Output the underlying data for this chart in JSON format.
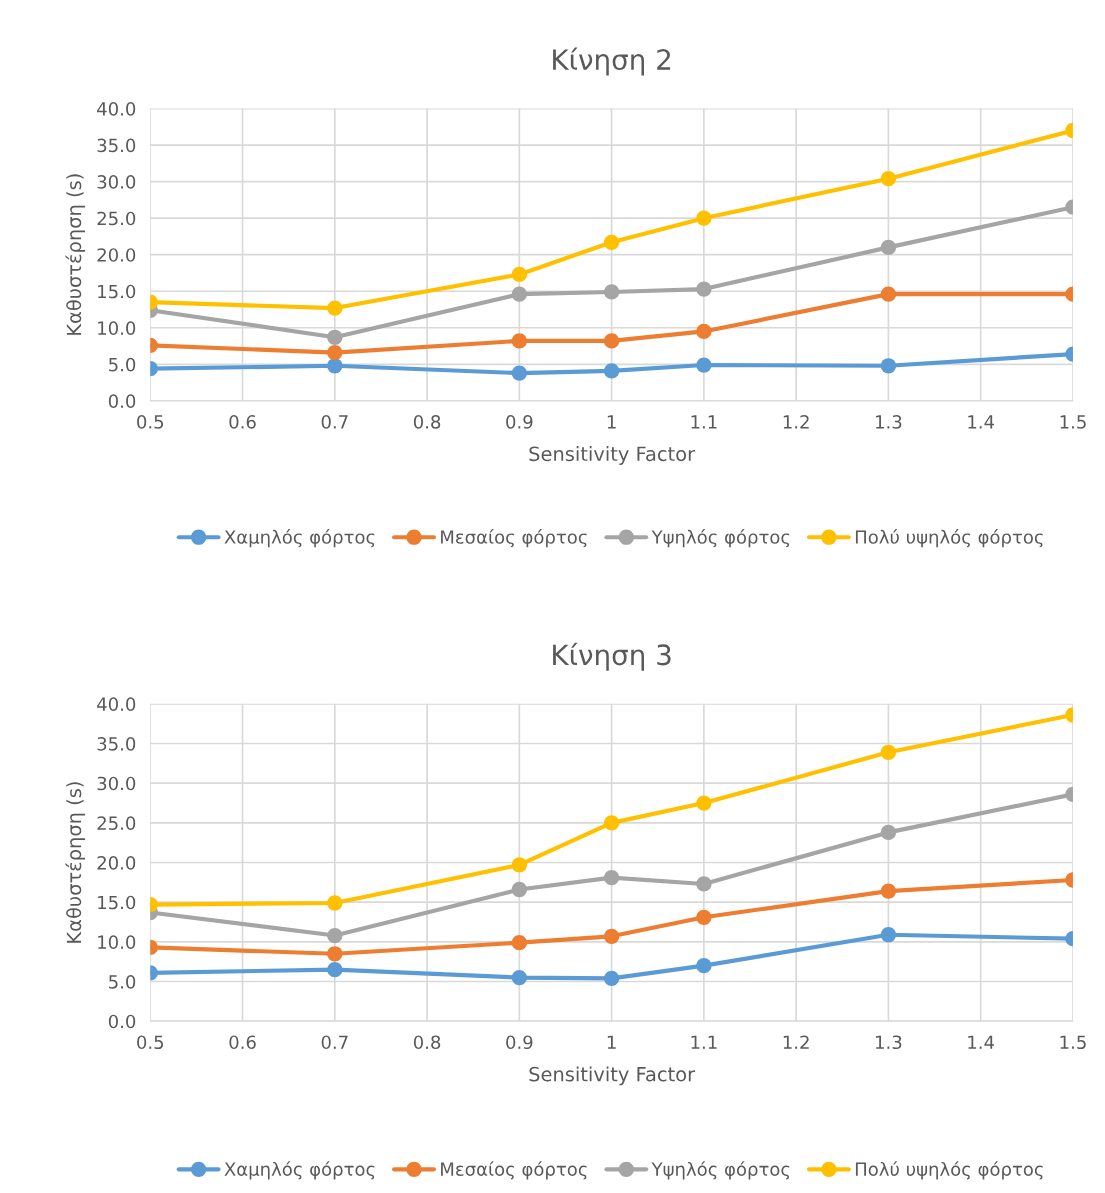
{
  "chart_data": [
    {
      "type": "line",
      "title": "Κίνηση 2",
      "xlabel": "Sensitivity Factor",
      "ylabel": "Καθυστέρηση (s)",
      "x": [
        0.5,
        0.7,
        0.9,
        1,
        1.1,
        1.3,
        1.5
      ],
      "xlim": [
        0.5,
        1.5
      ],
      "xticks": [
        0.5,
        0.6,
        0.7,
        0.8,
        0.9,
        1,
        1.1,
        1.2,
        1.3,
        1.4,
        1.5
      ],
      "ylim": [
        0,
        40
      ],
      "yticks": [
        {
          "value": 0,
          "label": "0.0"
        },
        {
          "value": 5,
          "label": "5.0"
        },
        {
          "value": 10,
          "label": "10.0"
        },
        {
          "value": 15,
          "label": "15.0"
        },
        {
          "value": 20,
          "label": "20.0"
        },
        {
          "value": 25,
          "label": "25.0"
        },
        {
          "value": 30,
          "label": "30.0"
        },
        {
          "value": 35,
          "label": "35.0"
        },
        {
          "value": 40,
          "label": "40.0"
        }
      ],
      "grid": true,
      "legend": "bottom",
      "marker": "circle",
      "line_style": "solid",
      "series": [
        {
          "name": "Χαμηλός φόρτος",
          "color": "#5b9bd5",
          "values": [
            4.4,
            4.8,
            3.8,
            4.1,
            4.9,
            4.8,
            6.4
          ]
        },
        {
          "name": "Μεσαίος φόρτος",
          "color": "#ed7d31",
          "values": [
            7.6,
            6.6,
            8.2,
            8.2,
            9.5,
            14.6,
            14.6
          ]
        },
        {
          "name": "Υψηλός φόρτος",
          "color": "#a5a5a5",
          "values": [
            12.4,
            8.7,
            14.6,
            14.9,
            15.3,
            21.0,
            26.5
          ]
        },
        {
          "name": "Πολύ υψηλός φόρτος",
          "color": "#ffc000",
          "values": [
            13.5,
            12.7,
            17.3,
            21.7,
            25.0,
            30.4,
            37.0
          ]
        }
      ]
    },
    {
      "type": "line",
      "title": "Κίνηση 3",
      "xlabel": "Sensitivity Factor",
      "ylabel": "Καθυστέρηση (s)",
      "x": [
        0.5,
        0.7,
        0.9,
        1,
        1.1,
        1.3,
        1.5
      ],
      "xlim": [
        0.5,
        1.5
      ],
      "xticks": [
        0.5,
        0.6,
        0.7,
        0.8,
        0.9,
        1,
        1.1,
        1.2,
        1.3,
        1.4,
        1.5
      ],
      "ylim": [
        0,
        40
      ],
      "yticks": [
        {
          "value": 0,
          "label": "0.0"
        },
        {
          "value": 5,
          "label": "5.0"
        },
        {
          "value": 10,
          "label": "10.0"
        },
        {
          "value": 15,
          "label": "15.0"
        },
        {
          "value": 20,
          "label": "20.0"
        },
        {
          "value": 25,
          "label": "25.0"
        },
        {
          "value": 30,
          "label": "30.0"
        },
        {
          "value": 35,
          "label": "35.0"
        },
        {
          "value": 40,
          "label": "40.0"
        }
      ],
      "grid": true,
      "legend": "bottom",
      "marker": "circle",
      "line_style": "solid",
      "series": [
        {
          "name": "Χαμηλός φόρτος",
          "color": "#5b9bd5",
          "values": [
            6.1,
            6.5,
            5.5,
            5.4,
            7.0,
            10.9,
            10.4
          ]
        },
        {
          "name": "Μεσαίος φόρτος",
          "color": "#ed7d31",
          "values": [
            9.3,
            8.5,
            9.9,
            10.7,
            13.1,
            16.4,
            17.8
          ]
        },
        {
          "name": "Υψηλός φόρτος",
          "color": "#a5a5a5",
          "values": [
            13.7,
            10.8,
            16.6,
            18.1,
            17.3,
            23.8,
            28.6
          ]
        },
        {
          "name": "Πολύ υψηλός φόρτος",
          "color": "#ffc000",
          "values": [
            14.7,
            14.9,
            19.7,
            25.0,
            27.5,
            33.9,
            38.6
          ]
        }
      ]
    }
  ]
}
